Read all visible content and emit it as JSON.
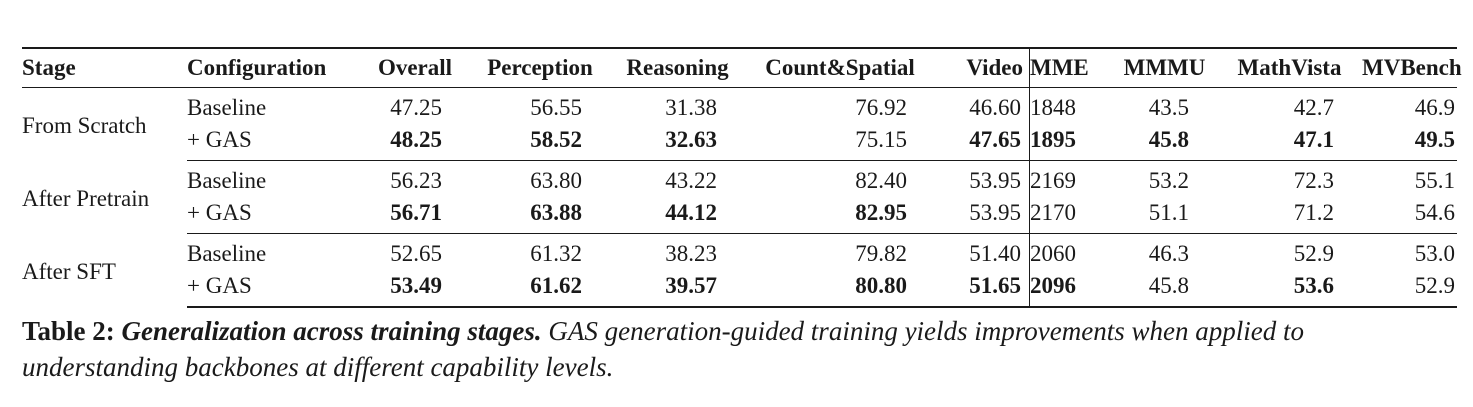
{
  "table": {
    "headers": [
      "Stage",
      "Configuration",
      "Overall",
      "Perception",
      "Reasoning",
      "Count&Spatial",
      "Video",
      "MME",
      "MMMU",
      "MathVista",
      "MVBench"
    ],
    "groups": [
      {
        "stage": "From Scratch",
        "rows": [
          {
            "config": "Baseline",
            "values": [
              "47.25",
              "56.55",
              "31.38",
              "76.92",
              "46.60",
              "1848",
              "43.5",
              "42.7",
              "46.9"
            ],
            "bold": [
              false,
              false,
              false,
              false,
              false,
              false,
              false,
              false,
              false
            ]
          },
          {
            "config": "+ GAS",
            "values": [
              "48.25",
              "58.52",
              "32.63",
              "75.15",
              "47.65",
              "1895",
              "45.8",
              "47.1",
              "49.5"
            ],
            "bold": [
              true,
              true,
              true,
              false,
              true,
              true,
              true,
              true,
              true
            ]
          }
        ]
      },
      {
        "stage": "After Pretrain",
        "rows": [
          {
            "config": "Baseline",
            "values": [
              "56.23",
              "63.80",
              "43.22",
              "82.40",
              "53.95",
              "2169",
              "53.2",
              "72.3",
              "55.1"
            ],
            "bold": [
              false,
              false,
              false,
              false,
              false,
              false,
              false,
              false,
              false
            ]
          },
          {
            "config": "+ GAS",
            "values": [
              "56.71",
              "63.88",
              "44.12",
              "82.95",
              "53.95",
              "2170",
              "51.1",
              "71.2",
              "54.6"
            ],
            "bold": [
              true,
              true,
              true,
              true,
              false,
              false,
              false,
              false,
              false
            ]
          }
        ]
      },
      {
        "stage": "After SFT",
        "rows": [
          {
            "config": "Baseline",
            "values": [
              "52.65",
              "61.32",
              "38.23",
              "79.82",
              "51.40",
              "2060",
              "46.3",
              "52.9",
              "53.0"
            ],
            "bold": [
              false,
              false,
              false,
              false,
              false,
              false,
              false,
              false,
              false
            ]
          },
          {
            "config": "+ GAS",
            "values": [
              "53.49",
              "61.62",
              "39.57",
              "80.80",
              "51.65",
              "2096",
              "45.8",
              "53.6",
              "52.9"
            ],
            "bold": [
              true,
              true,
              true,
              true,
              true,
              true,
              false,
              true,
              false
            ]
          }
        ]
      }
    ]
  },
  "caption": {
    "label": "Table 2:",
    "title": "Generalization across training stages.",
    "body": "GAS generation-guided training yields improvements when applied to understanding backbones at different capability levels."
  }
}
